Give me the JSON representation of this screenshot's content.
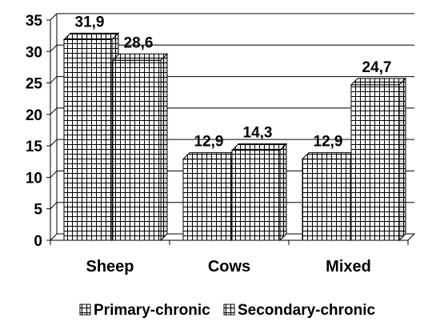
{
  "chart_data": {
    "type": "bar",
    "style": "3d-clustered-column, grid-hatched bars",
    "categories": [
      "Sheep",
      "Cows",
      "Mixed"
    ],
    "series": [
      {
        "name": "Primary-chronic",
        "values": [
          31.9,
          12.9,
          12.9
        ],
        "labels": [
          "31,9",
          "12,9",
          "12,9"
        ]
      },
      {
        "name": "Secondary-chronic",
        "values": [
          28.6,
          14.3,
          24.7
        ],
        "labels": [
          "28,6",
          "14,3",
          "24,7"
        ]
      }
    ],
    "y_ticks": [
      "0",
      "5",
      "10",
      "15",
      "20",
      "25",
      "30",
      "35"
    ],
    "ylim": [
      0,
      35
    ],
    "grid": true,
    "legend_position": "bottom",
    "title": "",
    "xlabel": "",
    "ylabel": "",
    "colors": {
      "bar_fill": "#ffffff",
      "bar_pattern": "#000000",
      "gridline": "#000000"
    }
  }
}
